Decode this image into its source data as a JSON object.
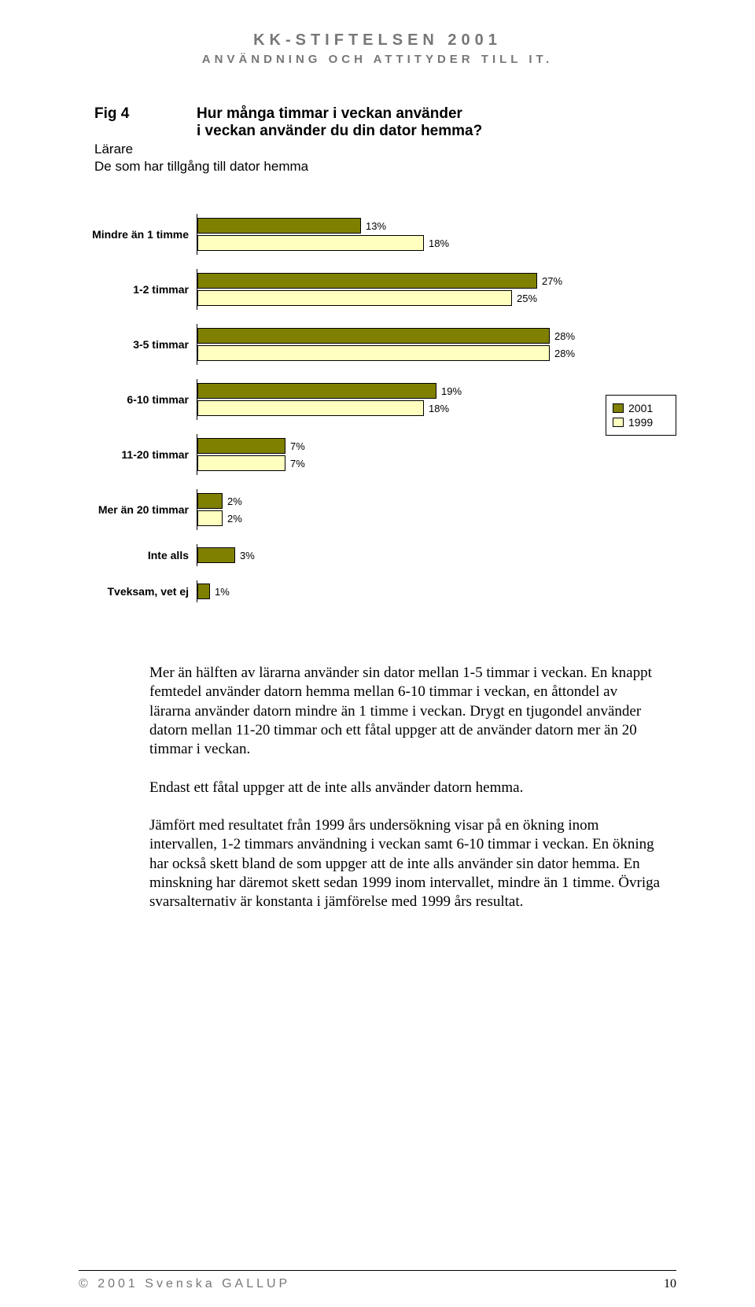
{
  "header": {
    "main": "KK-STIFTELSEN 2001",
    "sub": "ANVÄNDNING OCH ATTITYDER TILL IT."
  },
  "fig": {
    "label": "Fig 4",
    "title1": "Hur många timmar i veckan använder",
    "title2": "i veckan använder du din dator hemma?",
    "sub1": "Lärare",
    "sub2": "De som har tillgång till dator hemma"
  },
  "chart": {
    "max": 30,
    "colors": {
      "s2001": "#808000",
      "s1999": "#ffffc0"
    },
    "legend": [
      {
        "label": "2001",
        "color": "#808000"
      },
      {
        "label": "1999",
        "color": "#ffffc0"
      }
    ],
    "rows": [
      {
        "cat": "Mindre än 1 timme",
        "bars": [
          {
            "v": 13,
            "l": "13%",
            "c": "#808000"
          },
          {
            "v": 18,
            "l": "18%",
            "c": "#ffffc0"
          }
        ]
      },
      {
        "cat": "1-2 timmar",
        "bars": [
          {
            "v": 27,
            "l": "27%",
            "c": "#808000"
          },
          {
            "v": 25,
            "l": "25%",
            "c": "#ffffc0"
          }
        ]
      },
      {
        "cat": "3-5 timmar",
        "bars": [
          {
            "v": 28,
            "l": "28%",
            "c": "#808000"
          },
          {
            "v": 28,
            "l": "28%",
            "c": "#ffffc0"
          }
        ]
      },
      {
        "cat": "6-10 timmar",
        "bars": [
          {
            "v": 19,
            "l": "19%",
            "c": "#808000"
          },
          {
            "v": 18,
            "l": "18%",
            "c": "#ffffc0"
          }
        ]
      },
      {
        "cat": "11-20 timmar",
        "bars": [
          {
            "v": 7,
            "l": "7%",
            "c": "#808000"
          },
          {
            "v": 7,
            "l": "7%",
            "c": "#ffffc0"
          }
        ]
      },
      {
        "cat": "Mer än 20 timmar",
        "bars": [
          {
            "v": 2,
            "l": "2%",
            "c": "#808000"
          },
          {
            "v": 2,
            "l": "2%",
            "c": "#ffffc0"
          }
        ]
      },
      {
        "cat": "Inte alls",
        "bars": [
          {
            "v": 3,
            "l": "3%",
            "c": "#808000"
          }
        ]
      },
      {
        "cat": "Tveksam, vet ej",
        "bars": [
          {
            "v": 1,
            "l": "1%",
            "c": "#808000"
          }
        ]
      }
    ]
  },
  "paragraphs": {
    "p1": "Mer än hälften av lärarna använder sin dator mellan 1-5 timmar i veckan. En knappt femtedel använder datorn hemma  mellan 6-10 timmar i veckan, en åttondel  av lärarna använder datorn mindre än 1 timme i veckan. Drygt en tjugondel använder datorn mellan 11-20 timmar och ett fåtal uppger att de använder datorn mer än 20 timmar i veckan.",
    "p2": "Endast ett fåtal uppger att de inte alls använder datorn hemma.",
    "p3": "Jämfört med resultatet  från 1999 års undersökning visar på en ökning inom intervallen, 1-2 timmars användning i veckan samt 6-10 timmar i veckan.  En ökning har också skett bland de som uppger att de inte alls använder sin dator hemma. En minskning har däremot skett sedan 1999 inom intervallet,  mindre än 1 timme. Övriga svarsalternativ är konstanta i jämförelse med 1999 års resultat."
  },
  "footer": {
    "copyright": "© 2001 Svenska GALLUP",
    "page": "10"
  }
}
